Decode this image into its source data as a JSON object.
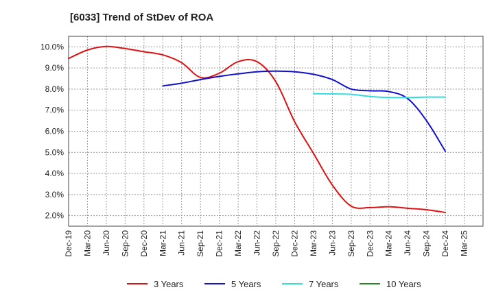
{
  "chart_data": {
    "type": "line",
    "title": "[6033]  Trend of StDev of ROA",
    "xlabel": "",
    "ylabel": "",
    "x_ticks": [
      "Dec-19",
      "Mar-20",
      "Jun-20",
      "Sep-20",
      "Dec-20",
      "Mar-21",
      "Jun-21",
      "Sep-21",
      "Dec-21",
      "Mar-22",
      "Jun-22",
      "Sep-22",
      "Dec-22",
      "Mar-23",
      "Jun-23",
      "Sep-23",
      "Dec-23",
      "Mar-24",
      "Jun-24",
      "Sep-24",
      "Dec-24",
      "Mar-25"
    ],
    "y_ticks": [
      2.0,
      3.0,
      4.0,
      5.0,
      6.0,
      7.0,
      8.0,
      9.0,
      10.0
    ],
    "y_tick_labels": [
      "2.0%",
      "3.0%",
      "4.0%",
      "5.0%",
      "6.0%",
      "7.0%",
      "8.0%",
      "9.0%",
      "10.0%"
    ],
    "ylim": [
      1.5,
      10.5
    ],
    "grid": true,
    "legend_position": "bottom",
    "series": [
      {
        "name": "3 Years",
        "color": "#dd1111",
        "x": [
          "Dec-19",
          "Mar-20",
          "Jun-20",
          "Sep-20",
          "Dec-20",
          "Mar-21",
          "Jun-21",
          "Sep-21",
          "Dec-21",
          "Mar-22",
          "Jun-22",
          "Sep-22",
          "Dec-22",
          "Mar-23",
          "Jun-23",
          "Sep-23",
          "Dec-23",
          "Mar-24",
          "Jun-24",
          "Sep-24",
          "Dec-24"
        ],
        "values": [
          9.45,
          9.85,
          10.02,
          9.92,
          9.77,
          9.62,
          9.25,
          8.55,
          8.75,
          9.3,
          9.3,
          8.35,
          6.45,
          4.95,
          3.45,
          2.45,
          2.38,
          2.42,
          2.35,
          2.28,
          2.15
        ]
      },
      {
        "name": "5 Years",
        "color": "#1111cc",
        "x": [
          "Mar-21",
          "Jun-21",
          "Sep-21",
          "Dec-21",
          "Mar-22",
          "Jun-22",
          "Sep-22",
          "Dec-22",
          "Mar-23",
          "Jun-23",
          "Sep-23",
          "Dec-23",
          "Mar-24",
          "Jun-24",
          "Sep-24",
          "Dec-24"
        ],
        "values": [
          8.15,
          8.28,
          8.45,
          8.6,
          8.72,
          8.82,
          8.85,
          8.82,
          8.7,
          8.45,
          8.0,
          7.92,
          7.88,
          7.55,
          6.5,
          5.05
        ]
      },
      {
        "name": "7 Years",
        "color": "#33dddd",
        "x": [
          "Mar-23",
          "Jun-23",
          "Sep-23",
          "Dec-23",
          "Mar-24",
          "Jun-24",
          "Sep-24",
          "Dec-24"
        ],
        "values": [
          7.78,
          7.77,
          7.75,
          7.65,
          7.6,
          7.6,
          7.62,
          7.62
        ]
      },
      {
        "name": "10 Years",
        "color": "#228822",
        "x": [],
        "values": []
      }
    ]
  }
}
